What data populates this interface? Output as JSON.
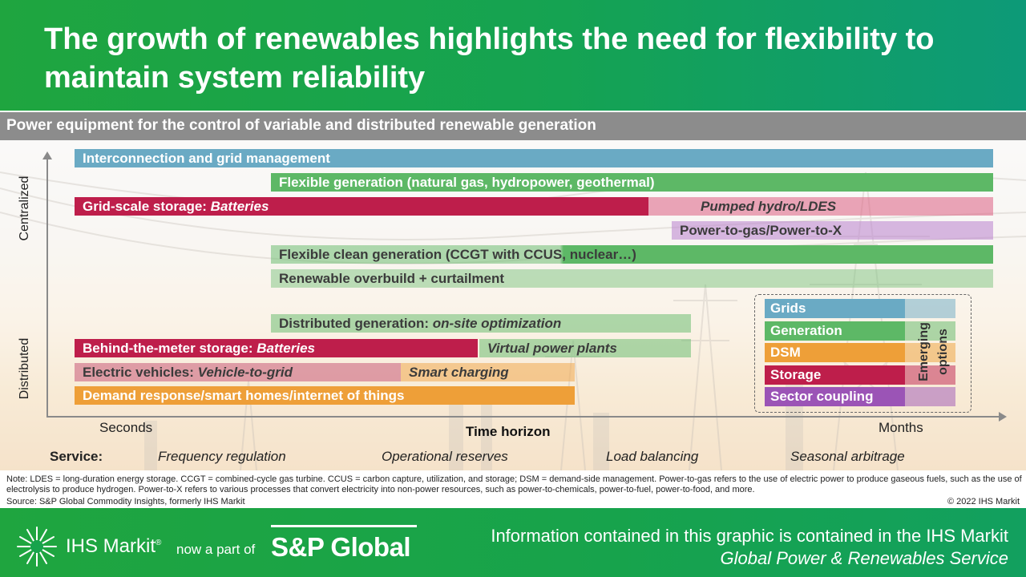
{
  "header": {
    "title": "The growth of renewables highlights the need for flexibility to maintain system reliability"
  },
  "subtitle": "Power equipment for the control of variable and distributed renewable generation",
  "colors": {
    "grids": "#5fa5c3",
    "generation": "#4caf5a",
    "dsm": "#ee9f38",
    "storage": "#be1e4b",
    "sector_coupling": "#9b54b6"
  },
  "axes": {
    "y_top": "Centralized",
    "y_bottom": "Distributed",
    "x_left": "Seconds",
    "x_right": "Months",
    "x_title": "Time horizon"
  },
  "bars": {
    "interconnection": "Interconnection and grid management",
    "flexible_generation": "Flexible generation (natural gas, hydropower, geothermal)",
    "grid_storage_prefix": "Grid-scale storage: ",
    "grid_storage_italic": "Batteries",
    "pumped_hydro": "Pumped hydro/LDES",
    "power_to_gas": "Power-to-gas/Power-to-X",
    "flexible_clean": "Flexible clean generation (CCGT with CCUS, nuclear…)",
    "renewable_overbuild": "Renewable overbuild + curtailment",
    "distributed_gen_prefix": "Distributed generation: ",
    "distributed_gen_italic": "on-site optimization",
    "btm_storage_prefix": "Behind-the-meter storage: ",
    "btm_storage_italic": "Batteries",
    "virtual_power_plants": "Virtual power plants",
    "ev_prefix": "Electric vehicles: ",
    "ev_italic": "Vehicle-to-grid",
    "smart_charging": "Smart charging",
    "demand_response": "Demand response/smart homes/internet of things"
  },
  "legend": {
    "items": [
      "Grids",
      "Generation",
      "DSM",
      "Storage",
      "Sector coupling"
    ],
    "emerging_line1": "Emerging",
    "emerging_line2": "options"
  },
  "service": {
    "label": "Service:",
    "items": [
      "Frequency regulation",
      "Operational reserves",
      "Load balancing",
      "Seasonal arbitrage"
    ]
  },
  "note": "Note: LDES = long-duration energy storage. CCGT = combined-cycle gas turbine. CCUS = carbon capture, utilization, and storage; DSM = demand-side management. Power-to-gas refers to the use of electric power to produce gaseous fuels, such as the use of electrolysis to produce hydrogen. Power-to-X refers to various processes that convert electricity into non-power resources, such as power-to-chemicals, power-to-fuel, power-to-food, and more.",
  "source": "Source: S&P Global Commodity Insights, formerly IHS Markit",
  "copyright": "© 2022 IHS Markit",
  "footer": {
    "ihs_markit": "IHS Markit",
    "reg_mark": "®",
    "now_part": "now a part of",
    "sp_global": "S&P Global",
    "info_line1": "Information contained in this graphic is contained in the IHS Markit",
    "info_line2": "Global Power & Renewables Service"
  }
}
